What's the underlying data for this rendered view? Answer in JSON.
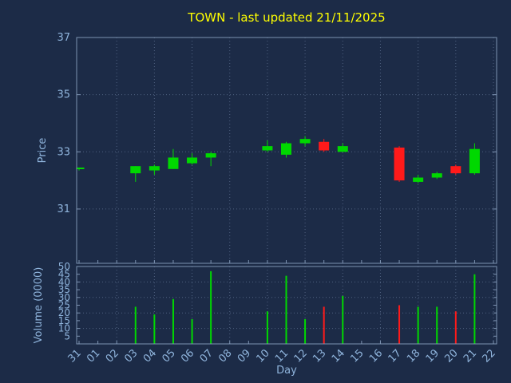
{
  "colors": {
    "background": "#1c2b47",
    "axis": "#7d93b2",
    "grid": "#4f6180",
    "tick_text": "#8fb4dc",
    "title_text": "#ffff00"
  },
  "chart_data": {
    "type": "candlestick",
    "title": "TOWN - last updated 21/11/2025",
    "xlabel": "Day",
    "ylabel_price": "Price",
    "ylabel_volume": "Volume (0000)",
    "legend_position": "none",
    "grid": true,
    "up_color": "#00d800",
    "down_color": "#ff1a1a",
    "x_ticks": [
      "31",
      "01",
      "02",
      "03",
      "04",
      "05",
      "06",
      "07",
      "08",
      "09",
      "10",
      "11",
      "12",
      "13",
      "14",
      "15",
      "16",
      "17",
      "18",
      "19",
      "20",
      "21",
      "22"
    ],
    "price_axis": {
      "min": 29.1,
      "max": 37,
      "ticks": [
        31,
        33,
        35,
        37
      ]
    },
    "volume_axis": {
      "min": 0,
      "max": 50,
      "ticks": [
        50,
        45,
        40,
        35,
        30,
        25,
        20,
        15,
        10,
        5
      ],
      "grid_ticks": [
        10,
        20,
        30,
        40,
        50
      ]
    },
    "grid_x_indices": [
      2,
      4,
      6,
      8,
      10,
      12,
      14,
      16,
      18,
      20,
      22
    ],
    "candles": [
      {
        "day": "31",
        "i": 0,
        "open": 32.4,
        "high": 32.45,
        "low": 32.35,
        "close": 32.45,
        "volume": 0
      },
      {
        "day": "03",
        "i": 3,
        "open": 32.25,
        "high": 32.5,
        "low": 31.95,
        "close": 32.5,
        "volume": 24
      },
      {
        "day": "04",
        "i": 4,
        "open": 32.35,
        "high": 32.55,
        "low": 32.2,
        "close": 32.5,
        "volume": 19
      },
      {
        "day": "05",
        "i": 5,
        "open": 32.4,
        "high": 33.1,
        "low": 32.4,
        "close": 32.8,
        "volume": 29
      },
      {
        "day": "06",
        "i": 6,
        "open": 32.6,
        "high": 32.95,
        "low": 32.55,
        "close": 32.8,
        "volume": 16
      },
      {
        "day": "07",
        "i": 7,
        "open": 32.8,
        "high": 33.0,
        "low": 32.5,
        "close": 32.95,
        "volume": 47
      },
      {
        "day": "10",
        "i": 10,
        "open": 33.05,
        "high": 33.4,
        "low": 33.0,
        "close": 33.2,
        "volume": 21
      },
      {
        "day": "11",
        "i": 11,
        "open": 32.9,
        "high": 33.35,
        "low": 32.8,
        "close": 33.3,
        "volume": 44
      },
      {
        "day": "12",
        "i": 12,
        "open": 33.3,
        "high": 33.55,
        "low": 33.2,
        "close": 33.45,
        "volume": 16
      },
      {
        "day": "13",
        "i": 13,
        "open": 33.35,
        "high": 33.45,
        "low": 33.0,
        "close": 33.05,
        "volume": 24
      },
      {
        "day": "14",
        "i": 14,
        "open": 33.0,
        "high": 33.3,
        "low": 33.0,
        "close": 33.2,
        "volume": 31
      },
      {
        "day": "17",
        "i": 17,
        "open": 33.15,
        "high": 33.2,
        "low": 31.95,
        "close": 32.0,
        "volume": 25
      },
      {
        "day": "18",
        "i": 18,
        "open": 31.95,
        "high": 32.2,
        "low": 31.9,
        "close": 32.1,
        "volume": 24
      },
      {
        "day": "19",
        "i": 19,
        "open": 32.1,
        "high": 32.3,
        "low": 32.05,
        "close": 32.25,
        "volume": 24
      },
      {
        "day": "20",
        "i": 20,
        "open": 32.5,
        "high": 32.55,
        "low": 32.2,
        "close": 32.25,
        "volume": 21
      },
      {
        "day": "21",
        "i": 21,
        "open": 32.25,
        "high": 33.3,
        "low": 32.2,
        "close": 33.1,
        "volume": 45
      }
    ]
  }
}
